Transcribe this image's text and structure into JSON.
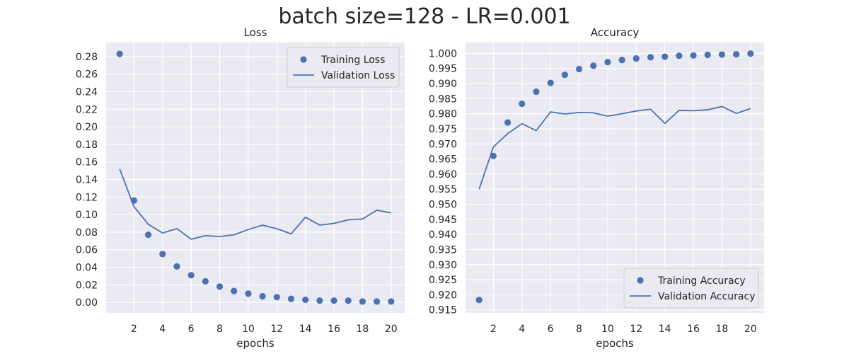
{
  "suptitle": "batch size=128 - LR=0.001",
  "colors": {
    "series": "#4c72b0",
    "axes_bg": "#eaeaf2",
    "grid": "#ffffff"
  },
  "chart_data": [
    {
      "type": "line",
      "title": "Loss",
      "xlabel": "epochs",
      "ylabel": "",
      "x": [
        1,
        2,
        3,
        4,
        5,
        6,
        7,
        8,
        9,
        10,
        11,
        12,
        13,
        14,
        15,
        16,
        17,
        18,
        19,
        20
      ],
      "xlim": [
        0.05,
        20.95
      ],
      "ylim": [
        -0.012,
        0.296
      ],
      "xticks": [
        2,
        4,
        6,
        8,
        10,
        12,
        14,
        16,
        18,
        20
      ],
      "yticks": [
        0.0,
        0.02,
        0.04,
        0.06,
        0.08,
        0.1,
        0.12,
        0.14,
        0.16,
        0.18,
        0.2,
        0.22,
        0.24,
        0.26,
        0.28
      ],
      "ytick_labels": [
        "0.00",
        "0.02",
        "0.04",
        "0.06",
        "0.08",
        "0.10",
        "0.12",
        "0.14",
        "0.16",
        "0.18",
        "0.20",
        "0.22",
        "0.24",
        "0.26",
        "0.28"
      ],
      "grid": true,
      "legend_position": "top-right",
      "series": [
        {
          "name": "Training Loss",
          "style": "markers",
          "values": [
            0.283,
            0.116,
            0.077,
            0.055,
            0.041,
            0.031,
            0.024,
            0.018,
            0.013,
            0.01,
            0.007,
            0.006,
            0.004,
            0.003,
            0.002,
            0.002,
            0.002,
            0.001,
            0.001,
            0.001
          ]
        },
        {
          "name": "Validation Loss",
          "style": "line",
          "values": [
            0.152,
            0.109,
            0.089,
            0.079,
            0.084,
            0.072,
            0.076,
            0.075,
            0.077,
            0.083,
            0.088,
            0.084,
            0.078,
            0.097,
            0.088,
            0.09,
            0.094,
            0.095,
            0.105,
            0.102
          ]
        }
      ]
    },
    {
      "type": "line",
      "title": "Accuracy",
      "xlabel": "epochs",
      "ylabel": "",
      "x": [
        1,
        2,
        3,
        4,
        5,
        6,
        7,
        8,
        9,
        10,
        11,
        12,
        13,
        14,
        15,
        16,
        17,
        18,
        19,
        20
      ],
      "xlim": [
        0.05,
        20.95
      ],
      "ylim": [
        0.914,
        1.0036
      ],
      "xticks": [
        2,
        4,
        6,
        8,
        10,
        12,
        14,
        16,
        18,
        20
      ],
      "yticks": [
        0.915,
        0.92,
        0.925,
        0.93,
        0.935,
        0.94,
        0.945,
        0.95,
        0.955,
        0.96,
        0.965,
        0.97,
        0.975,
        0.98,
        0.985,
        0.99,
        0.995,
        1.0
      ],
      "ytick_labels": [
        "0.915",
        "0.920",
        "0.925",
        "0.930",
        "0.935",
        "0.940",
        "0.945",
        "0.950",
        "0.955",
        "0.960",
        "0.965",
        "0.970",
        "0.975",
        "0.980",
        "0.985",
        "0.990",
        "0.995",
        "1.000"
      ],
      "grid": true,
      "legend_position": "bottom-right",
      "series": [
        {
          "name": "Training Accuracy",
          "style": "markers",
          "values": [
            0.9183,
            0.966,
            0.9771,
            0.9833,
            0.9873,
            0.9902,
            0.9929,
            0.9948,
            0.9959,
            0.9971,
            0.9978,
            0.9983,
            0.9987,
            0.9989,
            0.9992,
            0.9993,
            0.9995,
            0.9996,
            0.9997,
            0.9999
          ]
        },
        {
          "name": "Validation Accuracy",
          "style": "line",
          "values": [
            0.955,
            0.969,
            0.9734,
            0.9767,
            0.9744,
            0.9806,
            0.9799,
            0.9804,
            0.9803,
            0.9792,
            0.98,
            0.9809,
            0.9815,
            0.9768,
            0.9811,
            0.981,
            0.9813,
            0.9824,
            0.9801,
            0.9817
          ]
        }
      ]
    }
  ]
}
